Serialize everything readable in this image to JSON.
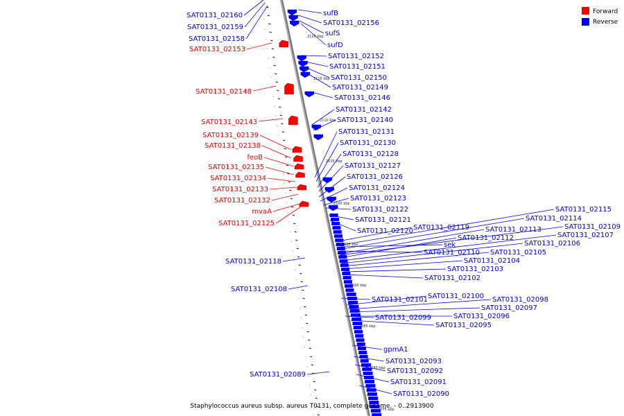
{
  "legend": {
    "forward_label": "Forward",
    "reverse_label": "Reverse",
    "forward_color": "#ff0000",
    "reverse_color": "#0000ff"
  },
  "caption": "Staphylococcus aureus subsp. aureus T0131, complete genome. - 0..2913900",
  "ticks": [
    "2120 kbp",
    "2115 kbp",
    "2110 kbp",
    "2105 kbp",
    "2100 kbp",
    "2095 kbp",
    "2090 kbp",
    "2085 kbp",
    "2080 kbp",
    "2075 kbp"
  ],
  "forward_genes": [
    "SAT0131_02153",
    "SAT0131_02148",
    "SAT0131_02143",
    "SAT0131_02139",
    "SAT0131_02138",
    "feoB",
    "SAT0131_02135",
    "SAT0131_02134",
    "SAT0131_02133",
    "SAT0131_02132",
    "mvaA",
    "SAT0131_02125"
  ],
  "reverse_left_genes": [
    "SAT0131_02160",
    "SAT0131_02159",
    "SAT0131_02158",
    "SAT0131_02118",
    "SAT0131_02108",
    "SAT0131_02089"
  ],
  "reverse_right_genes": [
    "sufB",
    "SAT0131_02156",
    "sufS",
    "sufD",
    "SAT0131_02152",
    "SAT0131_02151",
    "SAT0131_02150",
    "SAT0131_02149",
    "SAT0131_02146",
    "SAT0131_02142",
    "SAT0131_02140",
    "SAT0131_02131",
    "SAT0131_02130",
    "SAT0131_02128",
    "SAT0131_02127",
    "SAT0131_02126",
    "SAT0131_02124",
    "SAT0131_02123",
    "SAT0131_02122",
    "SAT0131_02121",
    "SAT0131_02120",
    "SAT0131_02119",
    "sek",
    "SAT0131_02110",
    "SAT0131_02101",
    "SAT0131_02099",
    "gpmA1",
    "SAT0131_02093",
    "SAT0131_02092",
    "SAT0131_02091",
    "SAT0131_02090"
  ],
  "reverse_far_genes": [
    "SAT0131_02115",
    "SAT0131_02114",
    "SAT0131_02113",
    "SAT0131_02109",
    "SAT0131_02112",
    "SAT0131_02107",
    "SAT0131_02106",
    "SAT0131_02105",
    "SAT0131_02104",
    "SAT0131_02103",
    "SAT0131_02102",
    "SAT0131_02100",
    "SAT0131_02098",
    "SAT0131_02097",
    "SAT0131_02096",
    "SAT0131_02095"
  ]
}
